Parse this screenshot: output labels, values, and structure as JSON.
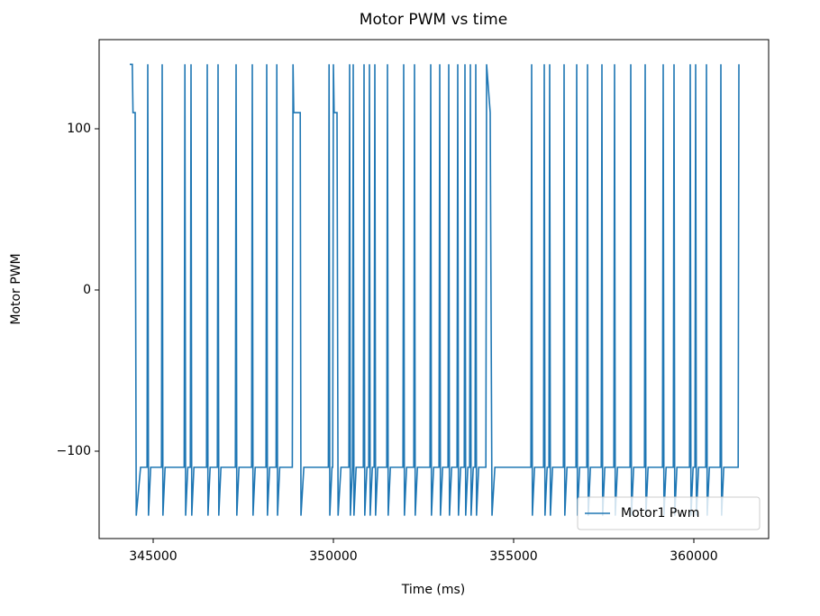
{
  "chart_data": {
    "type": "line",
    "title": "Motor PWM vs time",
    "x_label": "Time (ms)",
    "y_label": "Motor PWM",
    "xlim": [
      343500,
      362075
    ],
    "ylim": [
      -154.2,
      155.3
    ],
    "xticks": [
      345000,
      350000,
      355000,
      360000
    ],
    "yticks": [
      {
        "value": -100,
        "label": "−100"
      },
      0,
      100
    ],
    "legend": "lower right",
    "series": [
      {
        "name": "Motor1 Pwm",
        "color": "#1f77b4",
        "x": [
          344350,
          344420,
          344440,
          344500,
          344530,
          344650,
          344830,
          344850,
          344870,
          344930,
          345230,
          345250,
          345270,
          345330,
          345860,
          345880,
          345900,
          345960,
          346030,
          346050,
          346070,
          346130,
          346480,
          346500,
          346520,
          346580,
          346780,
          346800,
          346820,
          346880,
          347280,
          347300,
          347320,
          347380,
          347730,
          347750,
          347770,
          347830,
          348130,
          348150,
          348170,
          348230,
          348410,
          348430,
          348450,
          348510,
          348860,
          348880,
          348900,
          349080,
          349100,
          349180,
          349860,
          349880,
          349900,
          349960,
          349980,
          350000,
          350020,
          350100,
          350130,
          350210,
          350430,
          350450,
          350470,
          350530,
          350530,
          350550,
          350570,
          350630,
          350830,
          350850,
          350870,
          350930,
          350980,
          351000,
          351020,
          351080,
          351130,
          351150,
          351170,
          351230,
          351480,
          351500,
          351520,
          351580,
          351930,
          351950,
          351970,
          352030,
          352230,
          352250,
          352270,
          352330,
          352680,
          352700,
          352720,
          352780,
          352930,
          352950,
          352970,
          353030,
          353180,
          353200,
          353220,
          353280,
          353430,
          353450,
          353470,
          353530,
          353630,
          353650,
          353670,
          353730,
          353780,
          353800,
          353820,
          353880,
          353930,
          353950,
          353970,
          354030,
          354230,
          354250,
          354350,
          354400,
          354480,
          355480,
          355500,
          355520,
          355580,
          355830,
          355850,
          355870,
          355930,
          355980,
          356000,
          356020,
          356080,
          356380,
          356400,
          356420,
          356480,
          356730,
          356750,
          356770,
          356830,
          357030,
          357050,
          357070,
          357130,
          357430,
          357450,
          357470,
          357530,
          357780,
          357800,
          357820,
          357880,
          358230,
          358250,
          358270,
          358330,
          358630,
          358650,
          358670,
          358730,
          359130,
          359150,
          359170,
          359230,
          359430,
          359450,
          359470,
          359530,
          359880,
          359900,
          359920,
          359980,
          360030,
          360050,
          360070,
          360130,
          360330,
          360350,
          360370,
          360430,
          360730,
          360750,
          360770,
          360830,
          361230,
          361250
        ],
        "values": [
          140,
          140,
          110,
          110,
          -140,
          -110,
          -110,
          140,
          -140,
          -110,
          -110,
          140,
          -140,
          -110,
          -110,
          140,
          -140,
          -110,
          -110,
          140,
          -140,
          -110,
          -110,
          140,
          -140,
          -110,
          -110,
          140,
          -140,
          -110,
          -110,
          140,
          -140,
          -110,
          -110,
          140,
          -140,
          -110,
          -110,
          140,
          -140,
          -110,
          -110,
          140,
          -140,
          -110,
          -110,
          140,
          110,
          110,
          -140,
          -110,
          -110,
          140,
          -140,
          -110,
          -110,
          140,
          110,
          110,
          -140,
          -110,
          -110,
          140,
          -140,
          -110,
          -110,
          140,
          -140,
          -110,
          -110,
          140,
          -140,
          -110,
          -110,
          140,
          -140,
          -110,
          -110,
          140,
          -140,
          -110,
          -110,
          140,
          -140,
          -110,
          -110,
          140,
          -140,
          -110,
          -110,
          140,
          -140,
          -110,
          -110,
          140,
          -140,
          -110,
          -110,
          140,
          -140,
          -110,
          -110,
          140,
          -140,
          -110,
          -110,
          140,
          -140,
          -110,
          -110,
          140,
          -140,
          -110,
          -110,
          140,
          -140,
          -110,
          -110,
          140,
          -140,
          -110,
          -110,
          140,
          110,
          -140,
          -110,
          -110,
          140,
          -140,
          -110,
          -110,
          140,
          -140,
          -110,
          -110,
          140,
          -140,
          -110,
          -110,
          140,
          -140,
          -110,
          -110,
          140,
          -140,
          -110,
          -110,
          140,
          -140,
          -110,
          -110,
          140,
          -140,
          -110,
          -110,
          140,
          -140,
          -110,
          -110,
          140,
          -140,
          -110,
          -110,
          140,
          -140,
          -110,
          -110,
          140,
          -140,
          -110,
          -110,
          140,
          -140,
          -110,
          -110,
          140,
          -140,
          -110,
          -110,
          140,
          -140,
          -110,
          -110,
          140,
          -140,
          -110,
          -110,
          140,
          -140,
          -110,
          -110,
          140
        ]
      }
    ]
  }
}
